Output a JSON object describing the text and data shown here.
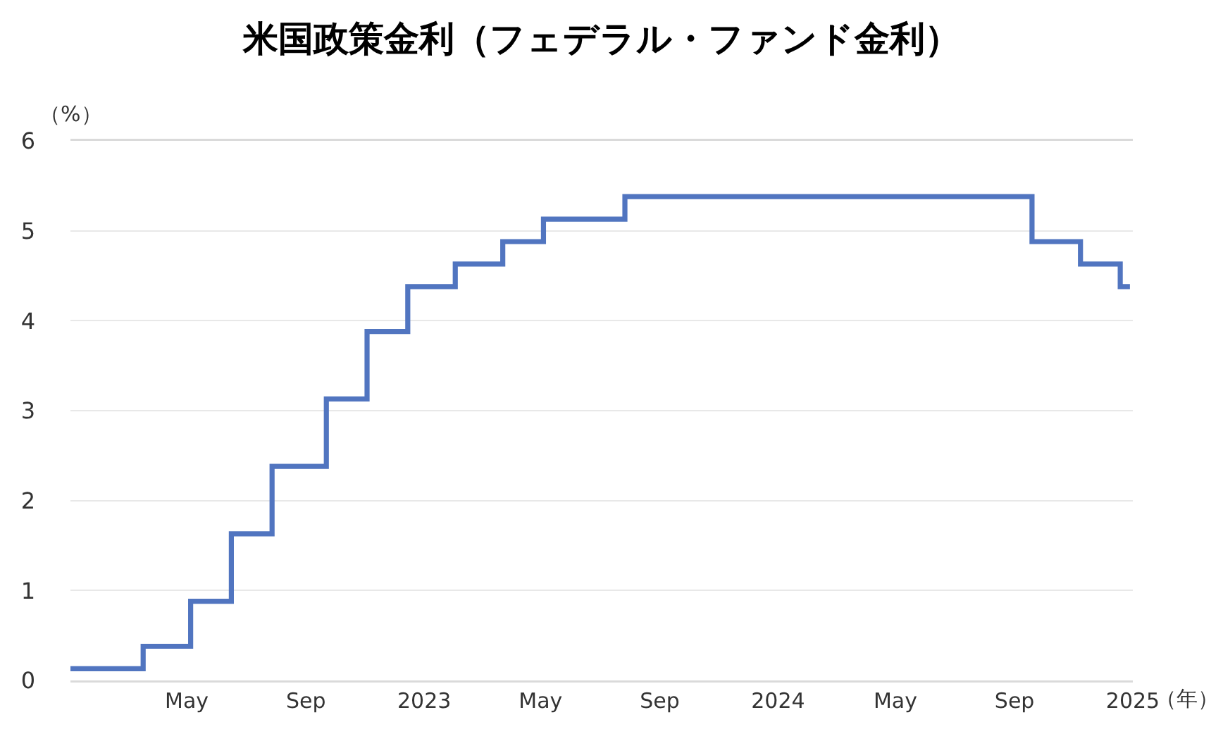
{
  "chart_data": {
    "type": "step",
    "title": "米国政策金利（フェデラル・ファンド金利）",
    "xlabel": "（年）",
    "ylabel": "（%）",
    "x": [
      "2022-01-01",
      "2022-03-17",
      "2022-05-05",
      "2022-06-16",
      "2022-07-28",
      "2022-09-22",
      "2022-11-03",
      "2022-12-15",
      "2023-02-02",
      "2023-03-23",
      "2023-05-04",
      "2023-07-27",
      "2024-09-19",
      "2024-11-08",
      "2024-12-19",
      "2024-12-29"
    ],
    "values": [
      0.13,
      0.38,
      0.88,
      1.63,
      2.38,
      3.13,
      3.88,
      4.38,
      4.63,
      4.88,
      5.13,
      5.38,
      4.88,
      4.63,
      4.38,
      4.38
    ],
    "color": "#5175c0",
    "xlim": [
      "2022-01-01",
      "2025-01-01"
    ],
    "xticks": [
      {
        "value": "2022-05-01",
        "label": "May"
      },
      {
        "value": "2022-09-01",
        "label": "Sep"
      },
      {
        "value": "2023-01-01",
        "label": "2023"
      },
      {
        "value": "2023-05-01",
        "label": "May"
      },
      {
        "value": "2023-09-01",
        "label": "Sep"
      },
      {
        "value": "2024-01-01",
        "label": "2024"
      },
      {
        "value": "2024-05-01",
        "label": "May"
      },
      {
        "value": "2024-09-01",
        "label": "Sep"
      },
      {
        "value": "2025-01-01",
        "label": "2025"
      }
    ],
    "ylim": [
      0,
      6
    ],
    "yticks": [
      0,
      1,
      2,
      3,
      4,
      5,
      6
    ],
    "grid": "y"
  }
}
